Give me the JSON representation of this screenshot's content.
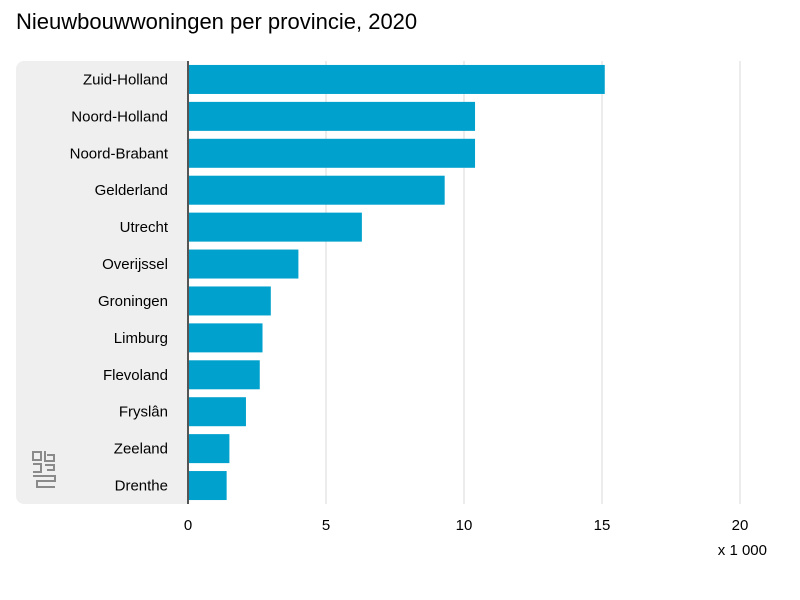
{
  "chart_data": {
    "type": "bar",
    "orientation": "horizontal",
    "title": "Nieuwbouwwoningen per provincie, 2020",
    "categories": [
      "Zuid-Holland",
      "Noord-Holland",
      "Noord-Brabant",
      "Gelderland",
      "Utrecht",
      "Overijssel",
      "Groningen",
      "Limburg",
      "Flevoland",
      "Fryslân",
      "Zeeland",
      "Drenthe"
    ],
    "values": [
      15.1,
      10.4,
      10.4,
      9.3,
      6.3,
      4.0,
      3.0,
      2.7,
      2.6,
      2.1,
      1.5,
      1.4
    ],
    "xlim": [
      0,
      20
    ],
    "xticks": [
      0,
      5,
      10,
      15,
      20
    ],
    "xlabel": "",
    "ylabel": "",
    "unit_label": "x 1 000",
    "grid": "vertical",
    "bar_color": "#00a1cd",
    "legend": "none"
  },
  "logo": {
    "name": "cbs-logo-icon"
  }
}
